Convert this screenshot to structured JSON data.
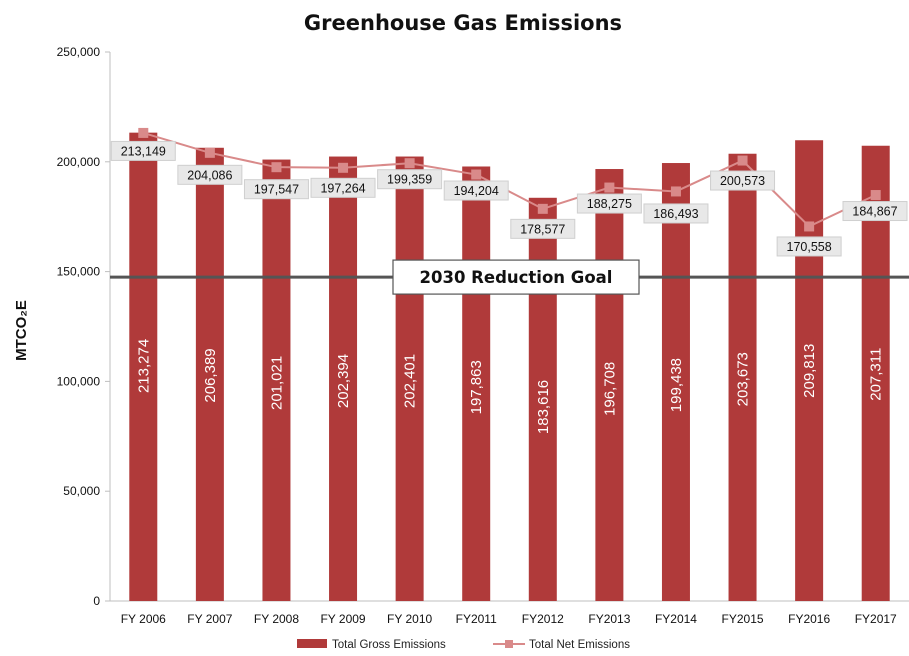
{
  "chart_data": {
    "type": "bar",
    "title": "Greenhouse Gas Emissions",
    "ylabel": "MTCO₂E",
    "xlabel": "",
    "ylim": [
      0,
      250000
    ],
    "yticks": [
      0,
      50000,
      100000,
      150000,
      200000,
      250000
    ],
    "ytick_labels": [
      "0",
      "50,000",
      "100,000",
      "150,000",
      "200,000",
      "250,000"
    ],
    "categories": [
      "FY 2006",
      "FY 2007",
      "FY 2008",
      "FY 2009",
      "FY 2010",
      "FY2011",
      "FY2012",
      "FY2013",
      "FY2014",
      "FY2015",
      "FY2016",
      "FY2017"
    ],
    "series": [
      {
        "name": "Total Gross Emissions",
        "type": "bar",
        "color": "#b03a3a",
        "values": [
          213274,
          206389,
          201021,
          202394,
          202401,
          197863,
          183616,
          196708,
          199438,
          203673,
          209813,
          207311
        ],
        "labels": [
          "213,274",
          "206,389",
          "201,021",
          "202,394",
          "202,401",
          "197,863",
          "183,616",
          "196,708",
          "199,438",
          "203,673",
          "209,813",
          "207,311"
        ]
      },
      {
        "name": "Total Net Emissions",
        "type": "line",
        "color": "#d98a8a",
        "values": [
          213149,
          204086,
          197547,
          197264,
          199359,
          194204,
          178577,
          188275,
          186493,
          200573,
          170558,
          184867
        ],
        "labels": [
          "213,149",
          "204,086",
          "197,547",
          "197,264",
          "199,359",
          "194,204",
          "178,577",
          "188,275",
          "186,493",
          "200,573",
          "170,558",
          "184,867"
        ]
      }
    ],
    "reference_line": {
      "label": "2030 Reduction Goal",
      "value": 147500,
      "color": "#555555"
    },
    "grid": false,
    "legend": "bottom"
  }
}
